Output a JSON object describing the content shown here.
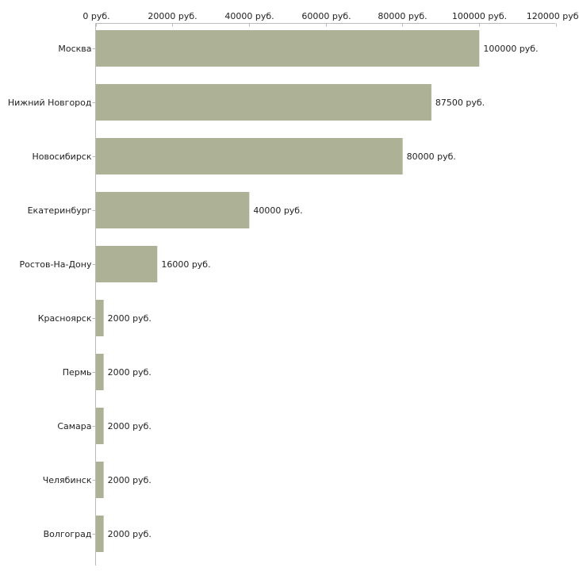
{
  "chart_data": {
    "type": "bar",
    "orientation": "horizontal",
    "categories": [
      "Москва",
      "Нижний Новгород",
      "Новосибирск",
      "Екатеринбург",
      "Ростов-На-Дону",
      "Красноярск",
      "Пермь",
      "Самара",
      "Челябинск",
      "Волгоград"
    ],
    "values": [
      100000,
      87500,
      80000,
      40000,
      16000,
      2000,
      2000,
      2000,
      2000,
      2000
    ],
    "value_labels": [
      "100000 руб.",
      "87500 руб.",
      "80000 руб.",
      "40000 руб.",
      "16000 руб.",
      "2000 руб.",
      "2000 руб.",
      "2000 руб.",
      "2000 руб.",
      "2000 руб."
    ],
    "x_ticks": [
      0,
      20000,
      40000,
      60000,
      80000,
      100000,
      120000
    ],
    "x_tick_labels": [
      "0 руб.",
      "20000 руб.",
      "40000 руб.",
      "60000 руб.",
      "80000 руб.",
      "100000 руб.",
      "120000 руб"
    ],
    "xlim": [
      0,
      120000
    ],
    "axis_position": "top",
    "grid": false,
    "bar_color": "#adb296",
    "axis_color": "#bbbbbb",
    "title": "",
    "xlabel": "",
    "ylabel": ""
  }
}
